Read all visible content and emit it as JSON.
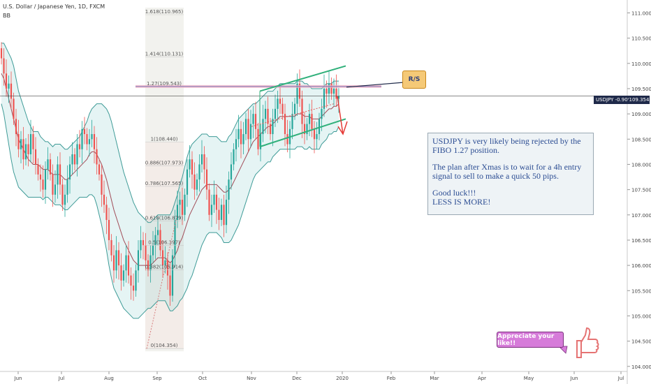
{
  "header": {
    "symbol_line": "U.S. Dollar / Japanese Yen, 1D, FXCM",
    "indicator": "BB"
  },
  "colors": {
    "up": "#26a69a",
    "down": "#ef5350",
    "band": "#a8dada",
    "fib_zone": "#e8e8e0",
    "trend": "#2fb07a",
    "note_text": "#2c4d93"
  },
  "chart_data": {
    "type": "candlestick",
    "x_ticks": [
      "Jun",
      "Jul",
      "Aug",
      "Sep",
      "Oct",
      "Nov",
      "Dec",
      "2020",
      "Feb",
      "Mar",
      "Apr",
      "May",
      "Jun",
      "Jul"
    ],
    "y_ticks": [
      "111.000",
      "110.500",
      "110.000",
      "109.500",
      "109.000",
      "108.500",
      "108.000",
      "107.500",
      "107.000",
      "106.500",
      "106.000",
      "105.500",
      "105.000",
      "104.500",
      "104.000"
    ],
    "ylim": [
      103.9,
      111.2
    ],
    "current_price_label": "109.354",
    "ticker_label": "USDJPY -0.90%",
    "fib_levels": [
      {
        "label": "1.618(110.965)",
        "value": 110.965
      },
      {
        "label": "1.414(110.131)",
        "value": 110.131
      },
      {
        "label": "1.27(109.543)",
        "value": 109.543
      },
      {
        "label": "1(108.440)",
        "value": 108.44
      },
      {
        "label": "0.886(107.973)",
        "value": 107.973
      },
      {
        "label": "0.786(107.565)",
        "value": 107.565
      },
      {
        "label": "0.618(106.879)",
        "value": 106.879
      },
      {
        "label": "0.5(106.397)",
        "value": 106.397
      },
      {
        "label": "0.382(105.914)",
        "value": 105.914
      },
      {
        "label": "0(104.354)",
        "value": 104.354
      }
    ],
    "closes": [
      110.1,
      109.8,
      109.5,
      109.6,
      109.3,
      108.9,
      108.6,
      108.3,
      108.5,
      108.1,
      108.4,
      108.2,
      108.6,
      108.3,
      108.0,
      107.8,
      107.7,
      107.5,
      107.9,
      108.1,
      107.8,
      107.4,
      107.6,
      108.0,
      107.6,
      107.2,
      107.4,
      107.7,
      108.0,
      108.2,
      108.0,
      108.4,
      108.3,
      108.7,
      108.6,
      108.4,
      108.5,
      108.6,
      108.3,
      108.0,
      107.8,
      107.4,
      107.2,
      106.9,
      106.5,
      106.2,
      105.9,
      106.3,
      106.0,
      105.7,
      105.9,
      106.2,
      105.8,
      105.6,
      105.5,
      105.9,
      106.3,
      106.5,
      106.4,
      106.1,
      105.9,
      106.2,
      106.4,
      106.6,
      106.7,
      106.3,
      106.0,
      106.1,
      105.8,
      105.4,
      106.2,
      106.9,
      107.2,
      107.3,
      107.0,
      107.4,
      107.9,
      108.1,
      107.8,
      107.5,
      107.7,
      108.0,
      108.2,
      107.9,
      107.5,
      107.0,
      107.2,
      107.4,
      107.1,
      106.9,
      107.2,
      106.8,
      107.3,
      107.7,
      108.0,
      108.3,
      108.5,
      108.7,
      108.4,
      108.6,
      108.9,
      108.5,
      108.8,
      109.0,
      108.7,
      108.3,
      108.6,
      108.9,
      109.1,
      108.8,
      108.6,
      108.9,
      109.1,
      109.3,
      109.2,
      109.0,
      108.6,
      108.4,
      108.7,
      109.0,
      109.2,
      109.6,
      109.3,
      108.8,
      108.6,
      108.8,
      109.0,
      108.7,
      108.5,
      108.6,
      108.9,
      109.1,
      109.5,
      109.4,
      109.6,
      109.4,
      109.5,
      109.3,
      109.35
    ],
    "bb_mid": [
      109.8,
      109.7,
      109.5,
      109.3,
      109.1,
      108.9,
      108.7,
      108.5,
      108.4,
      108.3,
      108.2,
      108.1,
      108.05,
      108.0,
      108.0,
      108.0,
      107.95,
      107.9,
      107.9,
      107.9,
      107.85,
      107.8,
      107.8,
      107.8,
      107.8,
      107.75,
      107.7,
      107.7,
      107.75,
      107.8,
      107.85,
      107.9,
      107.95,
      108.0,
      108.05,
      108.1,
      108.2,
      108.25,
      108.25,
      108.2,
      108.1,
      108.0,
      107.85,
      107.7,
      107.5,
      107.3,
      107.1,
      106.95,
      106.8,
      106.65,
      106.5,
      106.4,
      106.3,
      106.2,
      106.1,
      106.05,
      106.0,
      106.0,
      106.0,
      106.0,
      106.0,
      106.0,
      106.05,
      106.1,
      106.15,
      106.15,
      106.15,
      106.15,
      106.1,
      106.05,
      106.1,
      106.2,
      106.3,
      106.45,
      106.55,
      106.7,
      106.85,
      107.0,
      107.1,
      107.2,
      107.3,
      107.4,
      107.5,
      107.55,
      107.6,
      107.6,
      107.6,
      107.6,
      107.6,
      107.55,
      107.5,
      107.45,
      107.45,
      107.5,
      107.55,
      107.65,
      107.75,
      107.85,
      107.95,
      108.05,
      108.15,
      108.25,
      108.35,
      108.45,
      108.5,
      108.55,
      108.6,
      108.65,
      108.7,
      108.75,
      108.75,
      108.8,
      108.85,
      108.9,
      108.95,
      108.95,
      108.95,
      108.95,
      108.95,
      108.95,
      108.95,
      109.0,
      109.0,
      109.0,
      108.95,
      108.95,
      108.95,
      108.9,
      108.9,
      108.9,
      108.9,
      108.95,
      109.0,
      109.05,
      109.1,
      109.1,
      109.15,
      109.15,
      109.2
    ],
    "bb_width": [
      0.6,
      0.7,
      0.8,
      0.9,
      1.0,
      1.05,
      1.0,
      0.95,
      0.9,
      0.85,
      0.8,
      0.75,
      0.7,
      0.65,
      0.65,
      0.65,
      0.6,
      0.6,
      0.55,
      0.55,
      0.55,
      0.55,
      0.6,
      0.6,
      0.6,
      0.6,
      0.6,
      0.6,
      0.6,
      0.6,
      0.6,
      0.6,
      0.6,
      0.65,
      0.7,
      0.75,
      0.8,
      0.85,
      0.9,
      1.0,
      1.1,
      1.2,
      1.3,
      1.4,
      1.5,
      1.55,
      1.55,
      1.5,
      1.45,
      1.4,
      1.35,
      1.3,
      1.25,
      1.2,
      1.15,
      1.1,
      1.05,
      1.0,
      0.95,
      0.9,
      0.85,
      0.85,
      0.85,
      0.85,
      0.85,
      0.85,
      0.85,
      0.85,
      0.9,
      0.95,
      1.0,
      1.05,
      1.1,
      1.15,
      1.2,
      1.25,
      1.3,
      1.3,
      1.3,
      1.25,
      1.2,
      1.15,
      1.1,
      1.05,
      1.0,
      0.95,
      0.95,
      0.95,
      0.95,
      0.95,
      0.95,
      1.0,
      1.0,
      1.05,
      1.05,
      1.05,
      1.05,
      1.05,
      1.0,
      0.95,
      0.9,
      0.85,
      0.8,
      0.75,
      0.7,
      0.7,
      0.7,
      0.7,
      0.7,
      0.7,
      0.7,
      0.65,
      0.65,
      0.65,
      0.65,
      0.65,
      0.65,
      0.65,
      0.65,
      0.65,
      0.65,
      0.65,
      0.65,
      0.65,
      0.65,
      0.65,
      0.6,
      0.6,
      0.6,
      0.6,
      0.6,
      0.55,
      0.55,
      0.55,
      0.5,
      0.5,
      0.5,
      0.5,
      0.45,
      0.45,
      0.45
    ]
  },
  "annotations": {
    "rs_label": "R/S",
    "note_paragraphs": [
      "USDJPY is very likely being rejected by the FIBO 1.27 position.",
      "The plan after Xmas is to wait for a 4h entry signal to sell to make a quick 50 pips.",
      "Good luck!!! LESS IS MORE!"
    ],
    "appreciate_label": "Appreciate your like!!"
  }
}
